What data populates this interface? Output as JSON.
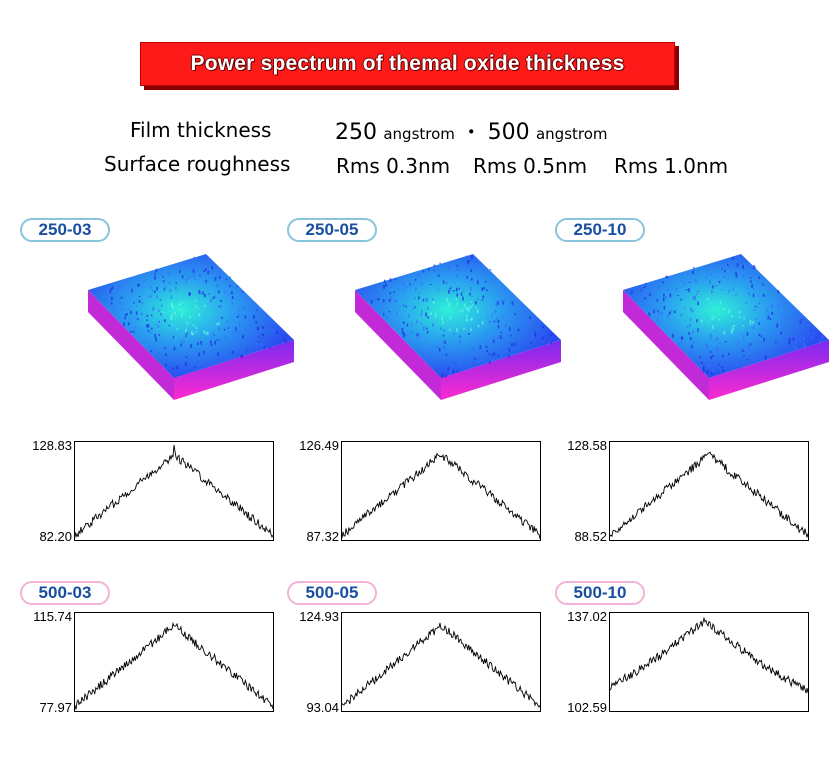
{
  "title": "Power spectrum of themal oxide thickness",
  "specs": {
    "film_label": "Film thickness",
    "film_value_1": "250",
    "film_unit_1": "angstrom",
    "film_sep": "・",
    "film_value_2": "500",
    "film_unit_2": "angstrom",
    "rough_label": "Surface roughness",
    "rough_values": [
      "Rms 0.3nm",
      "Rms 0.5nm",
      "Rms 1.0nm"
    ]
  },
  "colors": {
    "title_bg": "#ff1a1a",
    "label_blue_border": "#88c4dc",
    "label_pink_border": "#f2b3d6",
    "label_text": "#1a4fa0",
    "surface_top": "#2a4cf0",
    "surface_peak": "#2ef0d8",
    "surface_side": "#ff2ad0"
  },
  "chart_data": [
    {
      "type": "line",
      "label": "250-03",
      "ymax_label": "128.83",
      "ymin_label": "82.20",
      "ylim": [
        82.2,
        128.83
      ],
      "shape": "peak_spike",
      "surface": true,
      "label_style": "blue"
    },
    {
      "type": "line",
      "label": "250-05",
      "ymax_label": "126.49",
      "ymin_label": "87.32",
      "ylim": [
        87.32,
        126.49
      ],
      "shape": "peak",
      "surface": true,
      "label_style": "blue"
    },
    {
      "type": "line",
      "label": "250-10",
      "ymax_label": "128.58",
      "ymin_label": "88.52",
      "ylim": [
        88.52,
        128.58
      ],
      "shape": "peak",
      "surface": true,
      "label_style": "blue"
    },
    {
      "type": "line",
      "label": "500-03",
      "ymax_label": "115.74",
      "ymin_label": "77.97",
      "ylim": [
        77.97,
        115.74
      ],
      "shape": "peak",
      "surface": false,
      "label_style": "pink"
    },
    {
      "type": "line",
      "label": "500-05",
      "ymax_label": "124.93",
      "ymin_label": "93.04",
      "ylim": [
        93.04,
        124.93
      ],
      "shape": "peak",
      "surface": false,
      "label_style": "pink"
    },
    {
      "type": "line",
      "label": "500-10",
      "ymax_label": "137.02",
      "ymin_label": "102.59",
      "ylim": [
        102.59,
        137.02
      ],
      "shape": "broad_peak",
      "surface": false,
      "label_style": "pink"
    }
  ]
}
